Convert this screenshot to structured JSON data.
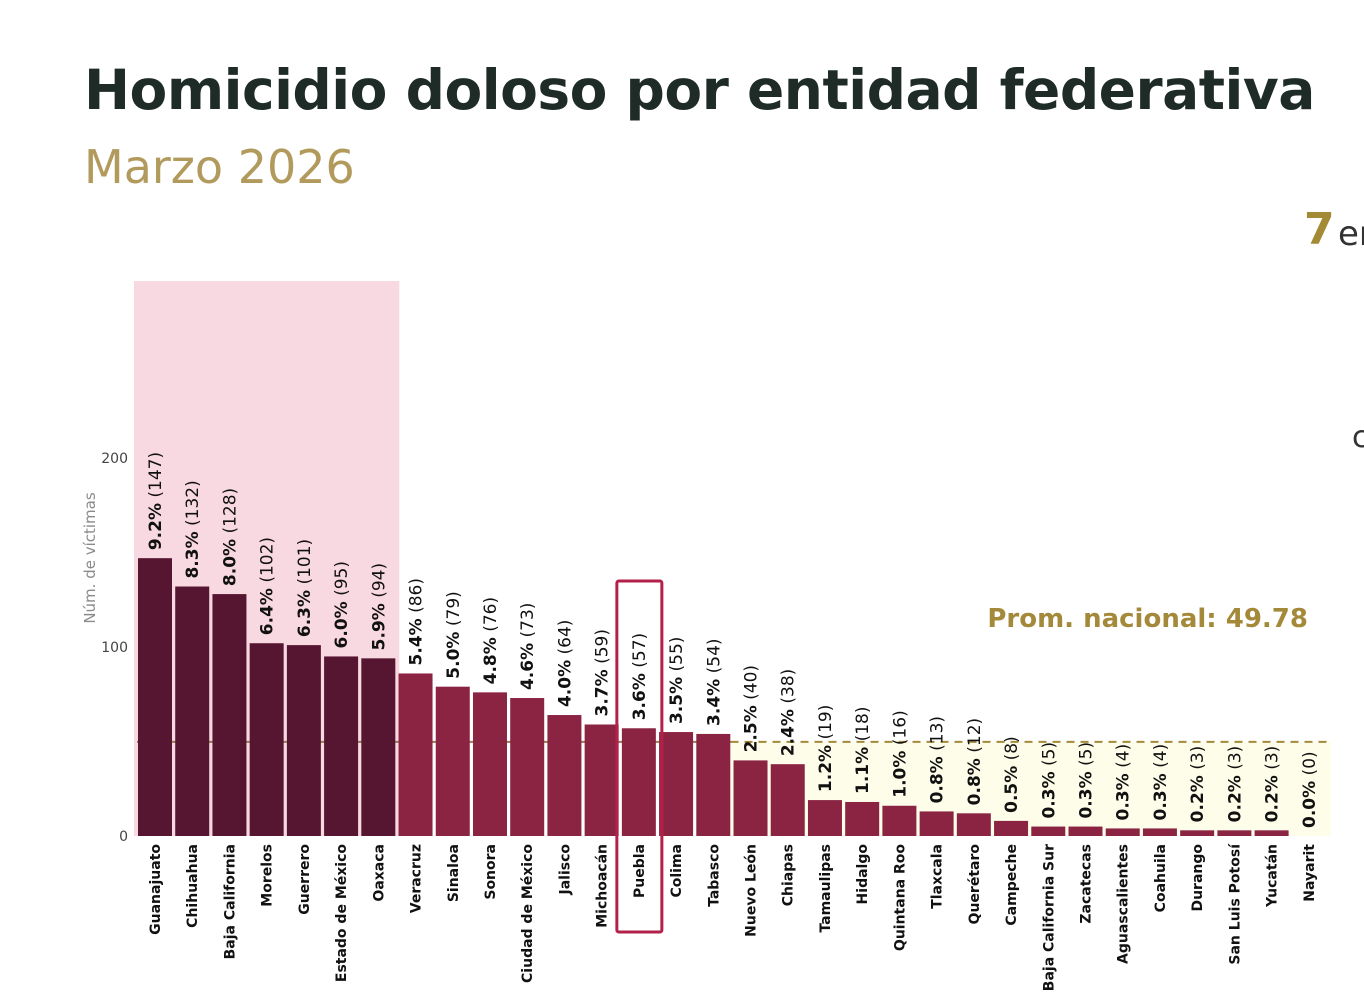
{
  "header": {
    "title": "Homicidio doloso por entidad federativa",
    "subtitle": "Marzo 2026"
  },
  "side_panel": {
    "number": "7",
    "word_fragment": "er",
    "fragment2": "c"
  },
  "colors": {
    "top_bars": "#561530",
    "other_bars": "#8b2343",
    "highlight_region": "#f9d9e1",
    "below_avg_region": "#fdfdea",
    "average_line": "#a5893a",
    "highlight_box": "#b5204a",
    "title": "#1e2b27",
    "subtitle": "#b19a5c"
  },
  "chart_data": {
    "type": "bar",
    "ylabel": "Núm. de víctimas",
    "xlabel": "",
    "ylim": [
      0,
      290
    ],
    "yticks": [
      0,
      100,
      200
    ],
    "grid": false,
    "average": {
      "label": "Prom. nacional: 49.78",
      "value": 49.78
    },
    "highlight_top_n": 7,
    "highlighted_category": "Puebla",
    "categories": [
      "Guanajuato",
      "Chihuahua",
      "Baja California",
      "Morelos",
      "Guerrero",
      "Estado de México",
      "Oaxaca",
      "Veracruz",
      "Sinaloa",
      "Sonora",
      "Ciudad de México",
      "Jalisco",
      "Michoacán",
      "Puebla",
      "Colima",
      "Tabasco",
      "Nuevo León",
      "Chiapas",
      "Tamaulipas",
      "Hidalgo",
      "Quintana Roo",
      "Tlaxcala",
      "Querétaro",
      "Campeche",
      "Baja California Sur",
      "Zacatecas",
      "Aguascalientes",
      "Coahuila",
      "Durango",
      "San Luis Potosí",
      "Yucatán",
      "Nayarit"
    ],
    "values": [
      147,
      132,
      128,
      102,
      101,
      95,
      94,
      86,
      79,
      76,
      73,
      64,
      59,
      57,
      55,
      54,
      40,
      38,
      19,
      18,
      16,
      13,
      12,
      8,
      5,
      5,
      4,
      4,
      3,
      3,
      3,
      0
    ],
    "percentages": [
      "9.2%",
      "8.3%",
      "8.0%",
      "6.4%",
      "6.3%",
      "6.0%",
      "5.9%",
      "5.4%",
      "5.0%",
      "4.8%",
      "4.6%",
      "4.0%",
      "3.7%",
      "3.6%",
      "3.5%",
      "3.4%",
      "2.5%",
      "2.4%",
      "1.2%",
      "1.1%",
      "1.0%",
      "0.8%",
      "0.8%",
      "0.5%",
      "0.3%",
      "0.3%",
      "0.3%",
      "0.3%",
      "0.2%",
      "0.2%",
      "0.2%",
      "0.0%"
    ]
  }
}
